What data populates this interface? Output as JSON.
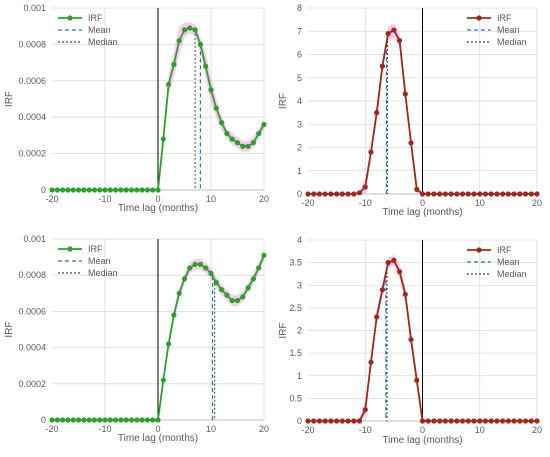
{
  "chart_data": [
    {
      "type": "line",
      "title": "",
      "xlabel": "Time lag (months)",
      "ylabel": "IRF",
      "xlim": [
        -20,
        20
      ],
      "ylim": [
        0,
        0.001
      ],
      "xticks": [
        -20,
        -10,
        0,
        10,
        20
      ],
      "yticks": [
        0,
        0.0002,
        0.0004,
        0.0006,
        0.0008,
        0.001
      ],
      "ytick_labels": [
        "0",
        "0.0002",
        "0.0004",
        "0.0006",
        "0.0008",
        "0.001"
      ],
      "legend": {
        "position": "top-left",
        "entries": [
          "IRF",
          "Mean",
          "Median"
        ]
      },
      "grid": true,
      "colors": {
        "irf": "#2ca02c",
        "band": "#ff66cc",
        "mean": "#2e75b6",
        "median": "#404040",
        "zero_line": "#000000"
      },
      "series": [
        {
          "name": "IRF",
          "x": [
            -20,
            -19,
            -18,
            -17,
            -16,
            -15,
            -14,
            -13,
            -12,
            -11,
            -10,
            -9,
            -8,
            -7,
            -6,
            -5,
            -4,
            -3,
            -2,
            -1,
            0,
            1,
            2,
            3,
            4,
            5,
            6,
            7,
            8,
            9,
            10,
            11,
            12,
            13,
            14,
            15,
            16,
            17,
            18,
            19,
            20
          ],
          "values": [
            0,
            0,
            0,
            0,
            0,
            0,
            0,
            0,
            0,
            0,
            0,
            0,
            0,
            0,
            0,
            0,
            0,
            0,
            0,
            0,
            0,
            0.00028,
            0.00058,
            0.00069,
            0.00082,
            0.00088,
            0.00089,
            0.00088,
            0.0008,
            0.00068,
            0.00055,
            0.00045,
            0.00037,
            0.00031,
            0.00028,
            0.00026,
            0.00024,
            0.00024,
            0.00026,
            0.00031,
            0.00036
          ],
          "band": [
            0,
            0,
            0,
            0,
            0,
            0,
            0,
            0,
            0,
            0,
            0,
            0,
            0,
            0,
            0,
            0,
            0,
            0,
            0,
            0,
            0,
            3e-05,
            6e-05,
            7e-05,
            8e-05,
            4e-05,
            3e-05,
            3e-05,
            4e-05,
            7e-05,
            7e-05,
            5e-05,
            4e-05,
            3e-05,
            3e-05,
            3e-05,
            3e-05,
            3e-05,
            3e-05,
            3e-05,
            3e-05
          ]
        },
        {
          "name": "Mean",
          "x": 8,
          "kind": "vline"
        },
        {
          "name": "Median",
          "x": 7,
          "kind": "vline"
        }
      ]
    },
    {
      "type": "line",
      "title": "",
      "xlabel": "Time lag (months)",
      "ylabel": "IRF",
      "xlim": [
        -20,
        20
      ],
      "ylim": [
        0,
        8
      ],
      "xticks": [
        -20,
        -10,
        0,
        10,
        20
      ],
      "yticks": [
        0,
        1,
        2,
        3,
        4,
        5,
        6,
        7,
        8
      ],
      "ytick_labels": [
        "0",
        "1",
        "2",
        "3",
        "4",
        "5",
        "6",
        "7",
        "8"
      ],
      "legend": {
        "position": "top-right",
        "entries": [
          "IRF",
          "Mean",
          "Median"
        ]
      },
      "grid": true,
      "colors": {
        "irf": "#a0281a",
        "band": "#ff66cc",
        "mean": "#2e75b6",
        "median": "#404040",
        "zero_line": "#000000"
      },
      "series": [
        {
          "name": "IRF",
          "x": [
            -20,
            -19,
            -18,
            -17,
            -16,
            -15,
            -14,
            -13,
            -12,
            -11,
            -10,
            -9,
            -8,
            -7,
            -6,
            -5,
            -4,
            -3,
            -2,
            -1,
            0,
            1,
            2,
            3,
            4,
            5,
            6,
            7,
            8,
            9,
            10,
            11,
            12,
            13,
            14,
            15,
            16,
            17,
            18,
            19,
            20
          ],
          "values": [
            0,
            0,
            0,
            0,
            0,
            0,
            0,
            0,
            0,
            0.05,
            0.3,
            1.8,
            3.5,
            5.5,
            6.9,
            7.05,
            6.6,
            4.3,
            2.2,
            0.2,
            0,
            0,
            0,
            0,
            0,
            0,
            0,
            0,
            0,
            0,
            0,
            0,
            0,
            0,
            0,
            0,
            0,
            0,
            0,
            0,
            0
          ],
          "band": [
            0,
            0,
            0,
            0,
            0,
            0,
            0,
            0,
            0,
            0.1,
            0.3,
            0.3,
            0.3,
            0.3,
            0.3,
            0.3,
            0.3,
            0.3,
            0.3,
            0.2,
            0,
            0,
            0,
            0,
            0,
            0,
            0,
            0,
            0,
            0,
            0,
            0,
            0,
            0,
            0,
            0,
            0,
            0,
            0,
            0,
            0
          ]
        },
        {
          "name": "Mean",
          "x": -6.3,
          "kind": "vline"
        },
        {
          "name": "Median",
          "x": -6.1,
          "kind": "vline"
        }
      ]
    },
    {
      "type": "line",
      "title": "",
      "xlabel": "Time lag (months)",
      "ylabel": "IRF",
      "xlim": [
        -20,
        20
      ],
      "ylim": [
        0,
        0.001
      ],
      "xticks": [
        -20,
        -10,
        0,
        10,
        20
      ],
      "yticks": [
        0,
        0.0002,
        0.0004,
        0.0006,
        0.0008,
        0.001
      ],
      "ytick_labels": [
        "0",
        "0.0002",
        "0.0004",
        "0.0006",
        "0.0008",
        "0.001"
      ],
      "legend": {
        "position": "top-left",
        "entries": [
          "IRF",
          "Mean",
          "Median"
        ]
      },
      "grid": true,
      "colors": {
        "irf": "#2ca02c",
        "band": "#ff66cc",
        "mean": "#2e75b6",
        "median": "#404040",
        "zero_line": "#000000"
      },
      "series": [
        {
          "name": "IRF",
          "x": [
            -20,
            -19,
            -18,
            -17,
            -16,
            -15,
            -14,
            -13,
            -12,
            -11,
            -10,
            -9,
            -8,
            -7,
            -6,
            -5,
            -4,
            -3,
            -2,
            -1,
            0,
            1,
            2,
            3,
            4,
            5,
            6,
            7,
            8,
            9,
            10,
            11,
            12,
            13,
            14,
            15,
            16,
            17,
            18,
            19,
            20
          ],
          "values": [
            0,
            0,
            0,
            0,
            0,
            0,
            0,
            0,
            0,
            0,
            0,
            0,
            0,
            0,
            0,
            0,
            0,
            0,
            0,
            0,
            0,
            0.00022,
            0.00042,
            0.00058,
            0.0007,
            0.00078,
            0.00084,
            0.00086,
            0.00086,
            0.00084,
            0.00081,
            0.00076,
            0.00072,
            0.00069,
            0.00066,
            0.00066,
            0.00068,
            0.00073,
            0.00078,
            0.00084,
            0.00091
          ],
          "band": [
            0,
            0,
            0,
            0,
            0,
            0,
            0,
            0,
            0,
            0,
            0,
            0,
            0,
            0,
            0,
            0,
            0,
            0,
            0,
            0,
            0,
            2e-05,
            3e-05,
            3e-05,
            3e-05,
            3e-05,
            3e-05,
            3e-05,
            3e-05,
            3e-05,
            3e-05,
            3e-05,
            3e-05,
            3e-05,
            3e-05,
            3e-05,
            3e-05,
            3e-05,
            3e-05,
            3e-05,
            3e-05
          ]
        },
        {
          "name": "Mean",
          "x": 10.3,
          "kind": "vline"
        },
        {
          "name": "Median",
          "x": 10.7,
          "kind": "vline"
        }
      ]
    },
    {
      "type": "line",
      "title": "",
      "xlabel": "Time lag (months)",
      "ylabel": "IRF",
      "xlim": [
        -20,
        20
      ],
      "ylim": [
        0,
        4
      ],
      "xticks": [
        -20,
        -10,
        0,
        10,
        20
      ],
      "yticks": [
        0,
        0.5,
        1,
        1.5,
        2,
        2.5,
        3,
        3.5,
        4
      ],
      "ytick_labels": [
        "0",
        "0.5",
        "1",
        "1.5",
        "2",
        "2.5",
        "3",
        "3.5",
        "4"
      ],
      "legend": {
        "position": "top-right",
        "entries": [
          "IRF",
          "Mean",
          "Median"
        ]
      },
      "grid": true,
      "colors": {
        "irf": "#a0281a",
        "band": "#ff66cc",
        "mean": "#2e75b6",
        "median": "#404040",
        "zero_line": "#000000"
      },
      "series": [
        {
          "name": "IRF",
          "x": [
            -20,
            -19,
            -18,
            -17,
            -16,
            -15,
            -14,
            -13,
            -12,
            -11,
            -10,
            -9,
            -8,
            -7,
            -6,
            -5,
            -4,
            -3,
            -2,
            -1,
            0,
            1,
            2,
            3,
            4,
            5,
            6,
            7,
            8,
            9,
            10,
            11,
            12,
            13,
            14,
            15,
            16,
            17,
            18,
            19,
            20
          ],
          "values": [
            0,
            0,
            0,
            0,
            0,
            0,
            0,
            0,
            0,
            0,
            0.25,
            1.3,
            2.3,
            2.9,
            3.5,
            3.55,
            3.3,
            2.8,
            1.8,
            0.9,
            0,
            0,
            0,
            0,
            0,
            0,
            0,
            0,
            0,
            0,
            0,
            0,
            0,
            0,
            0,
            0,
            0,
            0,
            0,
            0,
            0
          ],
          "band": [
            0,
            0,
            0,
            0,
            0,
            0,
            0,
            0,
            0,
            0.08,
            0.15,
            0.15,
            0.15,
            0.15,
            0.12,
            0.12,
            0.15,
            0.15,
            0.15,
            0.15,
            0.08,
            0,
            0,
            0,
            0,
            0,
            0,
            0,
            0,
            0,
            0,
            0,
            0,
            0,
            0,
            0,
            0,
            0,
            0,
            0,
            0
          ]
        },
        {
          "name": "Mean",
          "x": -6.4,
          "kind": "vline"
        },
        {
          "name": "Median",
          "x": -6.2,
          "kind": "vline"
        }
      ]
    }
  ]
}
